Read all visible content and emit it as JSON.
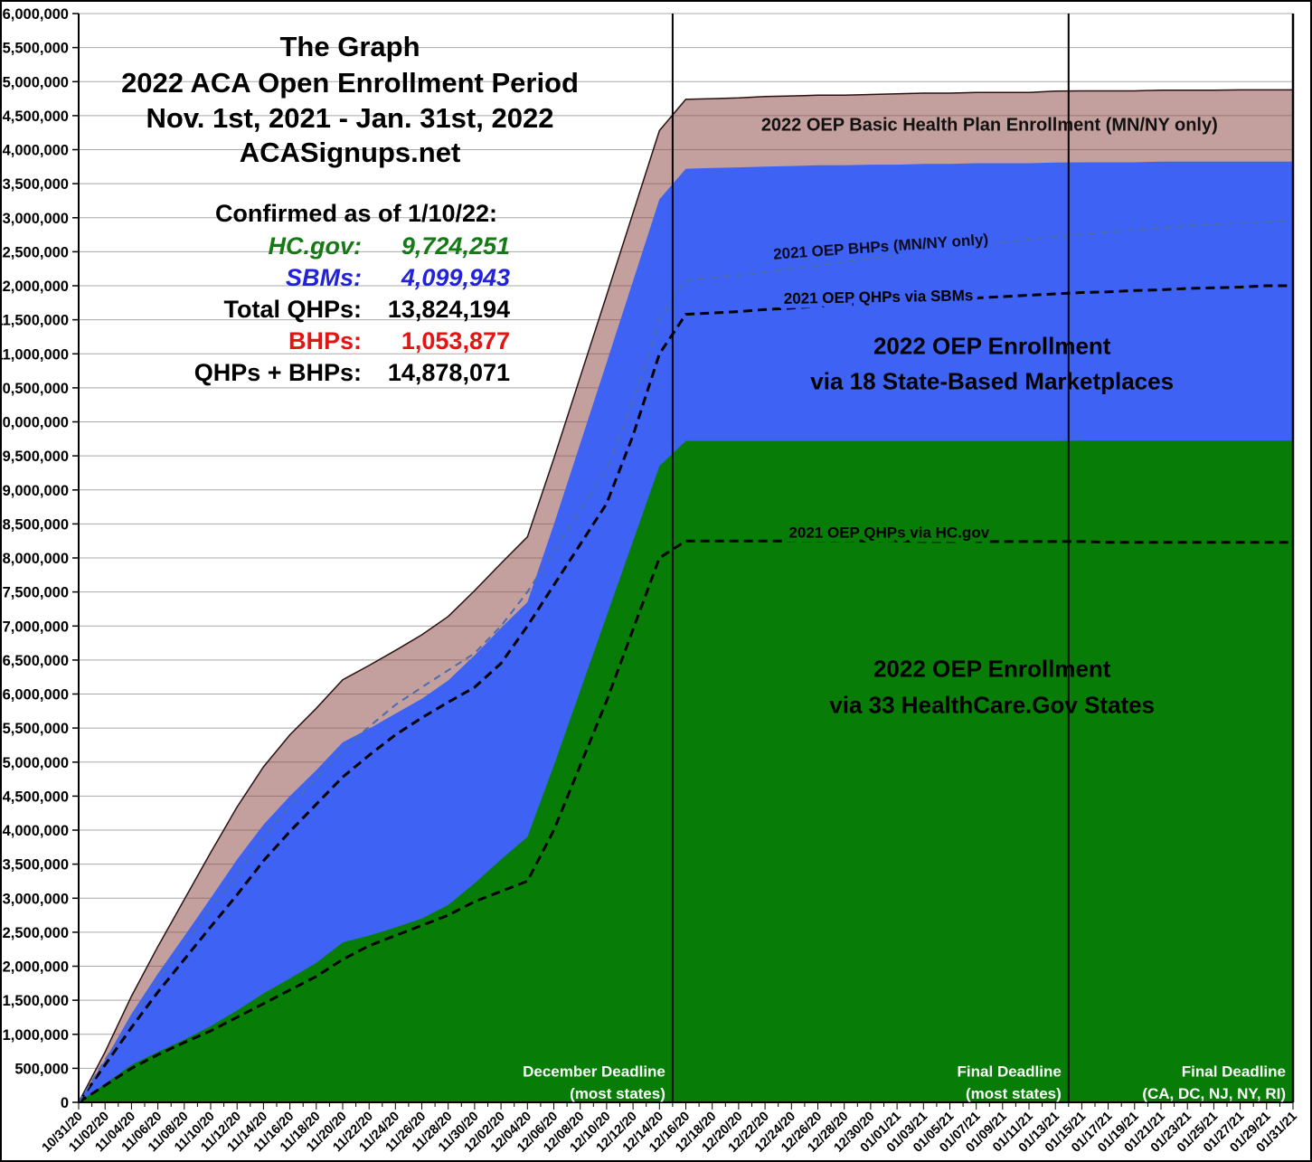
{
  "header": {
    "line1": "The Graph",
    "line2": "2022 ACA Open Enrollment Period",
    "line3": "Nov. 1st, 2021 - Jan. 31st, 2022",
    "line4": "ACASignups.net"
  },
  "stats": {
    "heading": "Confirmed as of 1/10/22:",
    "rows": [
      {
        "label": "HC.gov:",
        "value": "9,724,251",
        "color": "#157a15"
      },
      {
        "label": "SBMs:",
        "value": "4,099,943",
        "color": "#2222dd"
      },
      {
        "label": "Total QHPs:",
        "value": "13,824,194",
        "color": "#000000"
      },
      {
        "label": "BHPs:",
        "value": "1,053,877",
        "color": "#e41414"
      },
      {
        "label": "QHPs + BHPs:",
        "value": "14,878,071",
        "color": "#000000"
      }
    ]
  },
  "chart_data": {
    "type": "area",
    "stacked": true,
    "values_unit": "millions of people (cumulative plan selections)",
    "y_axis": {
      "min": 0,
      "max_millions": 16,
      "step": 500000,
      "grid_color": "#a9a9a9"
    },
    "x_labels": [
      "10/31/20",
      "11/02/20",
      "11/04/20",
      "11/06/20",
      "11/08/20",
      "11/10/20",
      "11/12/20",
      "11/14/20",
      "11/16/20",
      "11/18/20",
      "11/20/20",
      "11/22/20",
      "11/24/20",
      "11/26/20",
      "11/28/20",
      "11/30/20",
      "12/02/20",
      "12/04/20",
      "12/06/20",
      "12/08/20",
      "12/10/20",
      "12/12/20",
      "12/14/20",
      "12/16/20",
      "12/18/20",
      "12/20/20",
      "12/22/20",
      "12/24/20",
      "12/26/20",
      "12/28/20",
      "12/30/20",
      "01/01/21",
      "01/03/21",
      "01/05/21",
      "01/07/21",
      "01/09/21",
      "01/11/21",
      "01/13/21",
      "01/15/21",
      "01/17/21",
      "01/19/21",
      "01/21/21",
      "01/23/21",
      "01/25/21",
      "01/27/21",
      "01/29/21",
      "01/31/21"
    ],
    "series": [
      {
        "name": "2022 OEP Enrollment via 33 HealthCare.Gov States",
        "color": "#077D07",
        "values": [
          0,
          0.27,
          0.55,
          0.74,
          0.92,
          1.12,
          1.35,
          1.6,
          1.82,
          2.05,
          2.35,
          2.45,
          2.57,
          2.7,
          2.9,
          3.22,
          3.57,
          3.9,
          4.95,
          6.05,
          7.15,
          8.25,
          9.35,
          9.72,
          9.72,
          9.72,
          9.72,
          9.72,
          9.72,
          9.72,
          9.72,
          9.72,
          9.72,
          9.72,
          9.72,
          9.72,
          9.72,
          9.72,
          9.724,
          9.724,
          9.724,
          9.724,
          9.724,
          9.724,
          9.724,
          9.724,
          9.724
        ]
      },
      {
        "name": "2022 OEP Enrollment via 18 State-Based Marketplaces",
        "color": "#3E62F4",
        "values": [
          0,
          0.35,
          0.75,
          1.15,
          1.52,
          1.88,
          2.22,
          2.48,
          2.68,
          2.83,
          2.94,
          3.04,
          3.14,
          3.23,
          3.3,
          3.35,
          3.4,
          3.45,
          3.54,
          3.63,
          3.72,
          3.82,
          3.92,
          4.0,
          4.01,
          4.02,
          4.03,
          4.04,
          4.05,
          4.05,
          4.06,
          4.06,
          4.07,
          4.07,
          4.08,
          4.08,
          4.08,
          4.09,
          4.09,
          4.09,
          4.09,
          4.1,
          4.1,
          4.1,
          4.1,
          4.1,
          4.1
        ]
      },
      {
        "name": "2022 OEP Basic Health Plan Enrollment (MN/NY only)",
        "color": "#8C4643",
        "fill_opacity": 0.52,
        "edge_color": "#2a1212",
        "values": [
          0,
          0.12,
          0.26,
          0.4,
          0.54,
          0.67,
          0.77,
          0.85,
          0.9,
          0.91,
          0.92,
          0.93,
          0.93,
          0.94,
          0.94,
          0.95,
          0.95,
          0.96,
          0.97,
          0.98,
          0.99,
          1.0,
          1.01,
          1.02,
          1.02,
          1.02,
          1.03,
          1.03,
          1.03,
          1.03,
          1.03,
          1.04,
          1.04,
          1.04,
          1.04,
          1.04,
          1.04,
          1.05,
          1.05,
          1.05,
          1.05,
          1.05,
          1.05,
          1.05,
          1.054,
          1.054,
          1.054
        ]
      }
    ],
    "reference_lines": [
      {
        "name": "2021 OEP QHPs via HC.gov",
        "color": "#000000",
        "width": 3,
        "dash": "10,6",
        "values": [
          0,
          0.25,
          0.5,
          0.7,
          0.88,
          1.05,
          1.25,
          1.45,
          1.65,
          1.85,
          2.1,
          2.3,
          2.45,
          2.6,
          2.75,
          2.95,
          3.1,
          3.25,
          4.0,
          4.95,
          5.9,
          6.95,
          8.0,
          8.25,
          8.25,
          8.25,
          8.25,
          8.25,
          8.25,
          8.25,
          8.25,
          8.25,
          8.24,
          8.24,
          8.24,
          8.24,
          8.24,
          8.24,
          8.24,
          8.23,
          8.23,
          8.23,
          8.23,
          8.23,
          8.23,
          8.23,
          8.23
        ]
      },
      {
        "name": "2021 OEP QHPs via SBMs",
        "color": "#000000",
        "width": 3,
        "dash": "10,6",
        "values": [
          0,
          0.55,
          1.1,
          1.62,
          2.1,
          2.58,
          3.05,
          3.55,
          3.98,
          4.38,
          4.78,
          5.1,
          5.4,
          5.65,
          5.88,
          6.1,
          6.45,
          7.0,
          7.6,
          8.2,
          8.8,
          9.8,
          11.0,
          11.58,
          11.6,
          11.62,
          11.65,
          11.67,
          11.7,
          11.72,
          11.74,
          11.76,
          11.78,
          11.8,
          11.82,
          11.84,
          11.86,
          11.88,
          11.9,
          11.91,
          11.93,
          11.94,
          11.96,
          11.97,
          11.98,
          12.0,
          12.0
        ]
      },
      {
        "name": "2021 OEP BHPs (MN/NY only)",
        "color": "#4a6cb4",
        "width": 2,
        "dash": "8,6",
        "values": [
          0,
          0.62,
          1.22,
          1.8,
          2.32,
          2.85,
          3.36,
          3.9,
          4.35,
          4.77,
          5.18,
          5.52,
          5.84,
          6.1,
          6.35,
          6.6,
          7.0,
          7.5,
          8.1,
          8.7,
          9.3,
          10.3,
          11.5,
          12.08,
          12.12,
          12.16,
          12.2,
          12.25,
          12.3,
          12.35,
          12.4,
          12.45,
          12.5,
          12.55,
          12.6,
          12.64,
          12.68,
          12.72,
          12.76,
          12.79,
          12.82,
          12.85,
          12.88,
          12.9,
          12.92,
          12.94,
          12.95
        ]
      }
    ],
    "deadlines": [
      {
        "line1": "December Deadline",
        "line2": "(most states)",
        "x_index": 22.5,
        "has_line": true
      },
      {
        "line1": "Final Deadline",
        "line2": "(most states)",
        "x_index": 37.5,
        "has_line": true
      },
      {
        "line1": "Final Deadline",
        "line2": "(CA, DC, NJ, NY, RI)",
        "x_index": 46,
        "has_line": false
      }
    ],
    "annotations": [
      {
        "text": "2022 OEP Basic Health Plan Enrollment (MN/NY only)",
        "xi": 34.5,
        "y": 14.28,
        "size": 20,
        "color": "#111111"
      },
      {
        "text": "2021 OEP BHPs (MN/NY only)",
        "xi": 30.4,
        "y": 12.5,
        "size": 17,
        "color": "#0a0a1e",
        "rotate": -4,
        "halo": "#3E62F4"
      },
      {
        "text": "2021 OEP QHPs via SBMs",
        "xi": 30.3,
        "y": 11.76,
        "size": 17,
        "color": "#000000",
        "rotate": -1,
        "halo": "#3E62F4"
      },
      {
        "text": "2022 OEP Enrollment",
        "xi": 34.6,
        "y": 11.0,
        "size": 26,
        "color": "#000000"
      },
      {
        "text": "via 18 State-Based Marketplaces",
        "xi": 34.6,
        "y": 10.48,
        "size": 26,
        "color": "#000000"
      },
      {
        "text": "2021 OEP QHPs via HC.gov",
        "xi": 30.7,
        "y": 8.3,
        "size": 17,
        "color": "#000000",
        "halo": "#077D07"
      },
      {
        "text": "2022 OEP Enrollment",
        "xi": 34.6,
        "y": 6.25,
        "size": 26,
        "color": "#000000"
      },
      {
        "text": "via 33 HealthCare.Gov States",
        "xi": 34.6,
        "y": 5.72,
        "size": 26,
        "color": "#000000"
      }
    ]
  }
}
